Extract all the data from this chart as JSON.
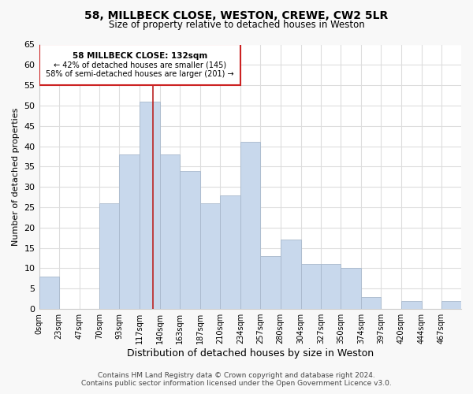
{
  "title": "58, MILLBECK CLOSE, WESTON, CREWE, CW2 5LR",
  "subtitle": "Size of property relative to detached houses in Weston",
  "xlabel": "Distribution of detached houses by size in Weston",
  "ylabel": "Number of detached properties",
  "bar_color": "#c8d8ec",
  "bar_edge_color": "#a8b8cc",
  "annotation_box_edge": "#cc2222",
  "annotation_line1": "58 MILLBECK CLOSE: 132sqm",
  "annotation_line2": "← 42% of detached houses are smaller (145)",
  "annotation_line3": "58% of semi-detached houses are larger (201) →",
  "property_size": 132,
  "categories": [
    "0sqm",
    "23sqm",
    "47sqm",
    "70sqm",
    "93sqm",
    "117sqm",
    "140sqm",
    "163sqm",
    "187sqm",
    "210sqm",
    "234sqm",
    "257sqm",
    "280sqm",
    "304sqm",
    "327sqm",
    "350sqm",
    "374sqm",
    "397sqm",
    "420sqm",
    "444sqm",
    "467sqm"
  ],
  "bin_edges": [
    0,
    23,
    47,
    70,
    93,
    117,
    140,
    163,
    187,
    210,
    234,
    257,
    280,
    304,
    327,
    350,
    374,
    397,
    420,
    444,
    467,
    490
  ],
  "values": [
    8,
    0,
    0,
    26,
    38,
    51,
    38,
    34,
    26,
    28,
    41,
    13,
    17,
    11,
    11,
    10,
    3,
    0,
    2,
    0,
    2
  ],
  "ylim": [
    0,
    65
  ],
  "yticks": [
    0,
    5,
    10,
    15,
    20,
    25,
    30,
    35,
    40,
    45,
    50,
    55,
    60,
    65
  ],
  "footer_line1": "Contains HM Land Registry data © Crown copyright and database right 2024.",
  "footer_line2": "Contains public sector information licensed under the Open Government Licence v3.0.",
  "background_color": "#f8f8f8",
  "plot_bg_color": "#ffffff",
  "grid_color": "#dddddd"
}
